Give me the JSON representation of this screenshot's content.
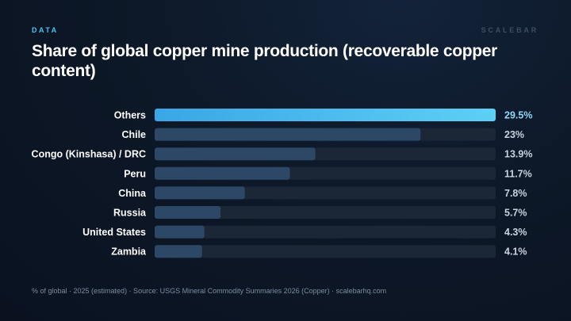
{
  "header": {
    "kicker": "DATA",
    "brand": "SCALEBAR",
    "title": "Share of global copper mine production (recoverable copper content)"
  },
  "footer": {
    "note": "% of global · 2025 (estimated) · Source: USGS Mineral Commodity Summaries 2026 (Copper) · scalebarhq.com"
  },
  "colors": {
    "highlight_start": "#3aa6e6",
    "highlight_end": "#5cd0f5",
    "bar": "#2d4766",
    "track": "#1b2637",
    "highlight_value": "#8fd8f7",
    "value": "#c9d3df",
    "label": "#ffffff"
  },
  "chart_data": {
    "type": "bar",
    "orientation": "horizontal",
    "categories": [
      "Others",
      "Chile",
      "Congo (Kinshasa) / DRC",
      "Peru",
      "China",
      "Russia",
      "United States",
      "Zambia"
    ],
    "values": [
      29.5,
      23,
      13.9,
      11.7,
      7.8,
      5.7,
      4.3,
      4.1
    ],
    "value_labels": [
      "29.5%",
      "23%",
      "13.9%",
      "11.7%",
      "7.8%",
      "5.7%",
      "4.3%",
      "4.1%"
    ],
    "xlim": [
      0,
      29.5
    ],
    "highlight_category": "Others",
    "grid": false
  }
}
